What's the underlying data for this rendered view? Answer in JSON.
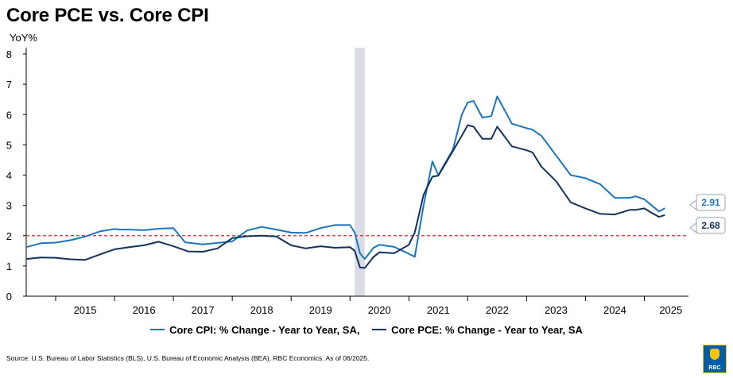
{
  "title": "Core PCE vs. Core CPI",
  "ylabel": "YoY%",
  "source": "Source: U.S. Bureau of Labor Statistics (BLS), U.S. Bureau of Economic Analysis (BEA), RBC Economics. As of 06/2025.",
  "logo_text": "RBC",
  "colors": {
    "cpi": "#1c75bc",
    "pce": "#14325c",
    "threshold": "#e0202a",
    "recession": "#d9dce4"
  },
  "chart_data": {
    "type": "line",
    "title": "Core PCE vs. Core CPI",
    "ylabel": "YoY%",
    "ylim": [
      0,
      8
    ],
    "yticks": [
      "0",
      "1",
      "2",
      "3",
      "4",
      "5",
      "6",
      "7",
      "8"
    ],
    "xlim": [
      2014.5,
      2025.75
    ],
    "xticks": [
      "2015",
      "2016",
      "2017",
      "2018",
      "2019",
      "2020",
      "2021",
      "2022",
      "2023",
      "2024",
      "2025"
    ],
    "threshold": 2,
    "recession": [
      2020.08,
      2020.25
    ],
    "grid": false,
    "legend": "bottom",
    "series": [
      {
        "name": "Core CPI: % Change - Year to Year, SA,",
        "x": [
          2014.5,
          2014.75,
          2015.0,
          2015.25,
          2015.5,
          2015.75,
          2016.0,
          2016.1,
          2016.25,
          2016.5,
          2016.75,
          2017.0,
          2017.2,
          2017.5,
          2017.75,
          2018.0,
          2018.25,
          2018.5,
          2018.75,
          2019.0,
          2019.25,
          2019.5,
          2019.75,
          2020.0,
          2020.08,
          2020.17,
          2020.25,
          2020.4,
          2020.5,
          2020.75,
          2021.0,
          2021.1,
          2021.25,
          2021.4,
          2021.5,
          2021.75,
          2021.9,
          2022.0,
          2022.1,
          2022.25,
          2022.4,
          2022.5,
          2022.75,
          2023.0,
          2023.1,
          2023.25,
          2023.5,
          2023.75,
          2024.0,
          2024.25,
          2024.5,
          2024.75,
          2024.85,
          2025.0,
          2025.25,
          2025.35
        ],
        "y": [
          1.62,
          1.75,
          1.77,
          1.85,
          1.97,
          2.14,
          2.22,
          2.2,
          2.2,
          2.18,
          2.23,
          2.25,
          1.78,
          1.71,
          1.76,
          1.81,
          2.17,
          2.29,
          2.2,
          2.1,
          2.09,
          2.25,
          2.35,
          2.35,
          2.1,
          1.42,
          1.23,
          1.6,
          1.7,
          1.63,
          1.4,
          1.3,
          3.0,
          4.45,
          4.0,
          4.85,
          6.0,
          6.4,
          6.45,
          5.9,
          5.95,
          6.6,
          5.7,
          5.55,
          5.5,
          5.3,
          4.65,
          4.0,
          3.9,
          3.7,
          3.25,
          3.25,
          3.3,
          3.2,
          2.8,
          2.91
        ]
      },
      {
        "name": "Core PCE: % Change - Year to Year, SA",
        "x": [
          2014.5,
          2014.75,
          2015.0,
          2015.25,
          2015.5,
          2015.75,
          2016.0,
          2016.25,
          2016.5,
          2016.75,
          2017.0,
          2017.25,
          2017.5,
          2017.75,
          2018.0,
          2018.25,
          2018.5,
          2018.75,
          2019.0,
          2019.25,
          2019.5,
          2019.75,
          2020.0,
          2020.08,
          2020.17,
          2020.25,
          2020.4,
          2020.5,
          2020.75,
          2021.0,
          2021.1,
          2021.25,
          2021.4,
          2021.5,
          2021.75,
          2021.9,
          2022.0,
          2022.1,
          2022.25,
          2022.4,
          2022.5,
          2022.75,
          2023.0,
          2023.1,
          2023.25,
          2023.5,
          2023.75,
          2024.0,
          2024.25,
          2024.5,
          2024.75,
          2024.85,
          2025.0,
          2025.1,
          2025.25,
          2025.35
        ],
        "y": [
          1.23,
          1.28,
          1.27,
          1.22,
          1.2,
          1.38,
          1.55,
          1.62,
          1.68,
          1.8,
          1.65,
          1.48,
          1.47,
          1.58,
          1.92,
          1.98,
          2.0,
          1.97,
          1.68,
          1.58,
          1.65,
          1.6,
          1.62,
          1.5,
          0.95,
          0.93,
          1.3,
          1.45,
          1.42,
          1.7,
          2.1,
          3.35,
          3.95,
          3.98,
          4.8,
          5.3,
          5.65,
          5.6,
          5.2,
          5.2,
          5.6,
          4.95,
          4.82,
          4.75,
          4.28,
          3.8,
          3.1,
          2.9,
          2.72,
          2.7,
          2.85,
          2.85,
          2.9,
          2.78,
          2.62,
          2.68
        ]
      }
    ],
    "end_labels": [
      "2.91",
      "2.68"
    ]
  }
}
